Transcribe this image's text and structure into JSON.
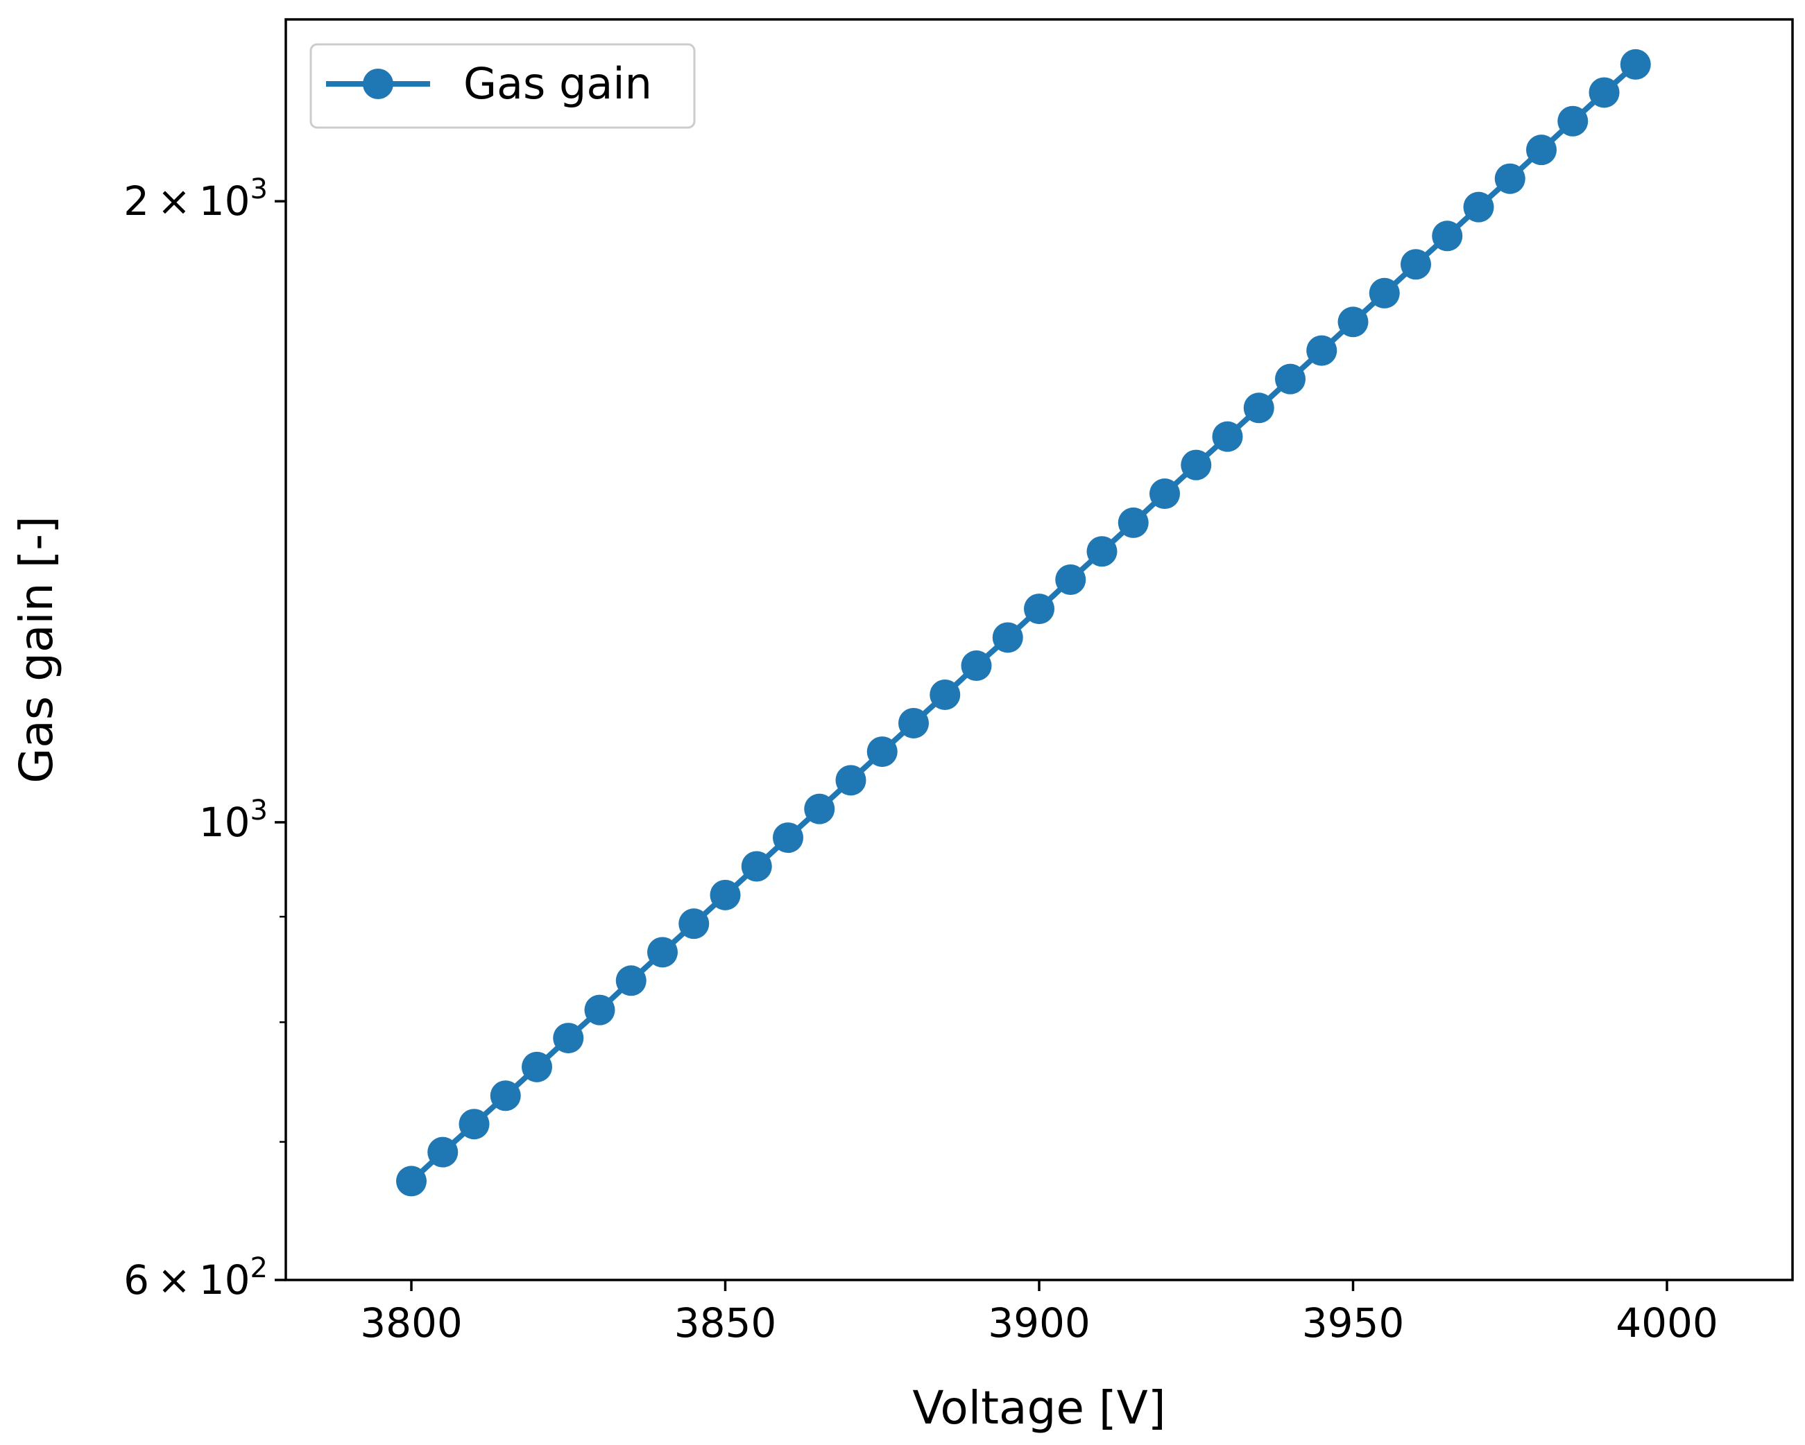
{
  "chart_data": {
    "type": "line",
    "xlabel": "Voltage [V]",
    "ylabel": "Gas gain [-]",
    "xlim": [
      3780,
      4020
    ],
    "ylim": [
      600,
      2450
    ],
    "yscale": "log",
    "x_ticks": [
      {
        "value": 3800,
        "label": "3800"
      },
      {
        "value": 3850,
        "label": "3850"
      },
      {
        "value": 3900,
        "label": "3900"
      },
      {
        "value": 3950,
        "label": "3950"
      },
      {
        "value": 4000,
        "label": "4000"
      }
    ],
    "y_major_ticks": [
      {
        "value": 600,
        "mantissa": "6",
        "base": "10",
        "exp": "2"
      },
      {
        "value": 1000,
        "mantissa": "",
        "base": "10",
        "exp": "3"
      },
      {
        "value": 2000,
        "mantissa": "2",
        "base": "10",
        "exp": "3"
      }
    ],
    "y_minor_ticks": [
      700,
      800,
      900
    ],
    "legend": {
      "position": "top-left",
      "label": "Gas gain"
    },
    "series": [
      {
        "name": "Gas gain",
        "color": "#1f77b4",
        "marker": "circle",
        "x": [
          3800,
          3805,
          3810,
          3815,
          3820,
          3825,
          3830,
          3835,
          3840,
          3845,
          3850,
          3855,
          3860,
          3865,
          3870,
          3875,
          3880,
          3885,
          3890,
          3895,
          3900,
          3905,
          3910,
          3915,
          3920,
          3925,
          3930,
          3935,
          3940,
          3945,
          3950,
          3955,
          3960,
          3965,
          3970,
          3975,
          3980,
          3985,
          3990,
          3995
        ],
        "y": [
          670,
          692,
          714,
          737,
          761,
          786,
          811,
          838,
          865,
          893,
          922,
          952,
          983,
          1015,
          1048,
          1082,
          1117,
          1153,
          1191,
          1229,
          1269,
          1311,
          1353,
          1397,
          1443,
          1490,
          1538,
          1588,
          1640,
          1693,
          1748,
          1805,
          1864,
          1924,
          1987,
          2051,
          2118,
          2187,
          2258,
          2330
        ]
      }
    ]
  }
}
